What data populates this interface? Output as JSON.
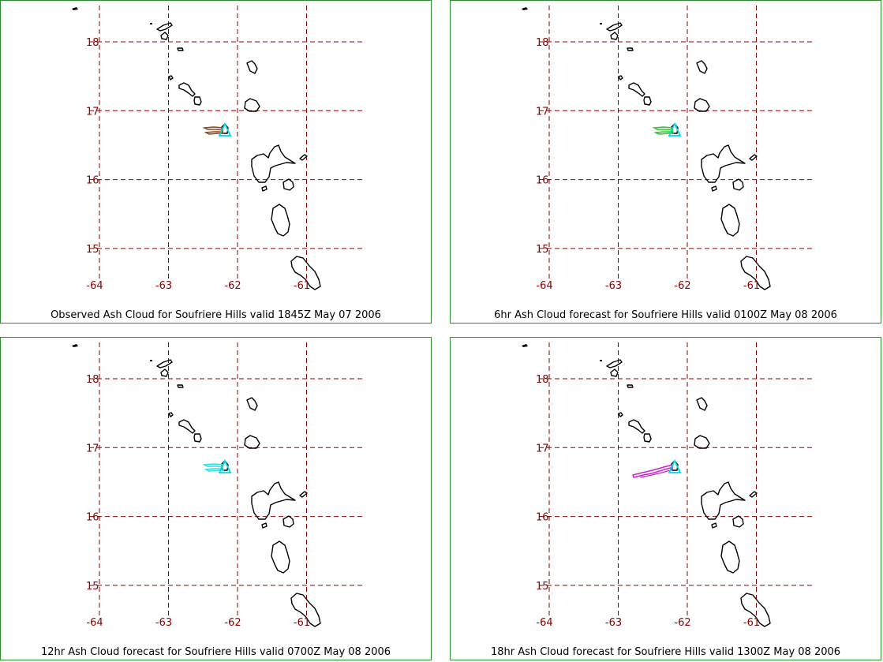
{
  "map": {
    "lat_labels": [
      "18",
      "17",
      "16",
      "15"
    ],
    "lon_labels": [
      "-64",
      "-63",
      "-62",
      "-61"
    ],
    "lat_values": [
      18,
      17,
      16,
      15
    ],
    "lon_values": [
      -64,
      -63,
      -62,
      -61
    ],
    "grid_color": "#8b0000",
    "label_color": "#8b0000",
    "land_color": "#000000",
    "volcano_marker_color": "#00d8e8"
  },
  "panels": [
    {
      "caption": "Observed Ash Cloud for Soufriere  Hills valid 1845Z May 07 2006",
      "ash_color": "#8b4513"
    },
    {
      "caption": "6hr Ash Cloud forecast for Soufriere  Hills valid 0100Z May 08 2006",
      "ash_color": "#22cc22"
    },
    {
      "caption": "12hr Ash Cloud forecast for Soufriere  Hills valid 0700Z May 08 2006",
      "ash_color": "#33dddd"
    },
    {
      "caption": "18hr Ash Cloud forecast for Soufriere  Hills valid 1300Z May 08 2006",
      "ash_color": "#cc22cc"
    }
  ]
}
